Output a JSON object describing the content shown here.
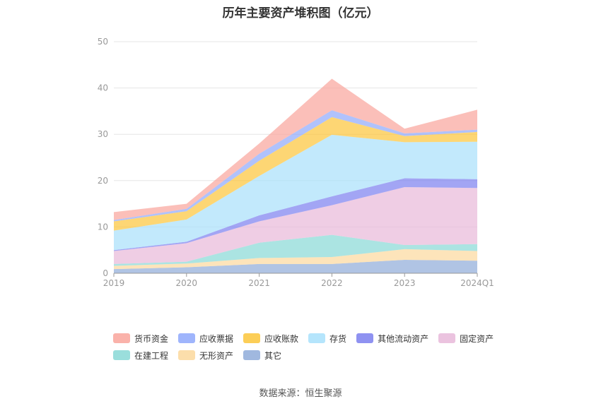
{
  "chart_data": {
    "type": "area",
    "title": "历年主要资产堆积图（亿元）",
    "categories": [
      "2019",
      "2020",
      "2021",
      "2022",
      "2023",
      "2024Q1"
    ],
    "ylim": [
      0,
      50
    ],
    "yticks": [
      0,
      10,
      20,
      30,
      40,
      50
    ],
    "grid": true,
    "legend_position": "bottom",
    "series": [
      {
        "name": "其它",
        "color": "#8fabd9",
        "values": [
          0.9,
          1.3,
          2.0,
          2.0,
          2.9,
          2.7
        ]
      },
      {
        "name": "无形资产",
        "color": "#fcd89c",
        "values": [
          0.7,
          0.8,
          1.3,
          1.5,
          2.3,
          2.1
        ]
      },
      {
        "name": "在建工程",
        "color": "#88d8d6",
        "values": [
          0.4,
          0.4,
          3.3,
          4.8,
          0.9,
          1.5
        ]
      },
      {
        "name": "固定资产",
        "color": "#e8b8d9",
        "values": [
          2.8,
          4.0,
          4.6,
          6.4,
          12.5,
          12.1
        ]
      },
      {
        "name": "其他流动资产",
        "color": "#7b7fef",
        "values": [
          0.2,
          0.3,
          1.3,
          1.9,
          1.9,
          1.9
        ]
      },
      {
        "name": "存货",
        "color": "#a8e0fb",
        "values": [
          4.2,
          4.8,
          8.5,
          13.3,
          7.8,
          8.1
        ]
      },
      {
        "name": "应收账款",
        "color": "#fcc539",
        "values": [
          2.0,
          1.8,
          3.3,
          3.8,
          1.3,
          2.1
        ]
      },
      {
        "name": "应收票据",
        "color": "#8ea8fb",
        "values": [
          0.3,
          0.5,
          1.5,
          1.5,
          0.6,
          0.5
        ]
      },
      {
        "name": "货币资金",
        "color": "#f9a49b",
        "values": [
          1.7,
          1.1,
          2.2,
          6.8,
          1.0,
          4.3
        ]
      }
    ]
  },
  "legend_order": [
    "货币资金",
    "应收票据",
    "应收账款",
    "存货",
    "其他流动资产",
    "固定资产",
    "在建工程",
    "无形资产",
    "其它"
  ],
  "source_text": "数据来源：恒生聚源"
}
